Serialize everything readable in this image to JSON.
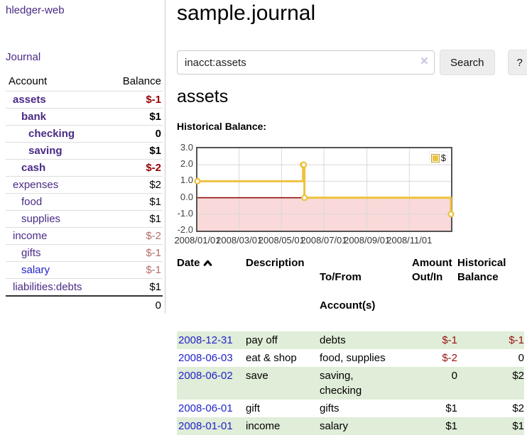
{
  "app": {
    "brand": "hledger-web"
  },
  "sidebar": {
    "nav_journal": "Journal",
    "headers": {
      "account": "Account",
      "balance": "Balance"
    },
    "accounts": [
      {
        "label": "assets",
        "level_class": "lv1",
        "row_class": "bold",
        "link_class": "",
        "balance": "$-1",
        "balance_class": "neg-strong"
      },
      {
        "label": "bank",
        "level_class": "lv2",
        "row_class": "bold",
        "link_class": "",
        "balance": "$1",
        "balance_class": ""
      },
      {
        "label": "checking",
        "level_class": "lv3",
        "row_class": "bold",
        "link_class": "",
        "balance": "0",
        "balance_class": ""
      },
      {
        "label": "saving",
        "level_class": "lv3",
        "row_class": "bold",
        "link_class": "",
        "balance": "$1",
        "balance_class": ""
      },
      {
        "label": "cash",
        "level_class": "lv2",
        "row_class": "bold",
        "link_class": "",
        "balance": "$-2",
        "balance_class": "neg-strong"
      },
      {
        "label": "expenses",
        "level_class": "lv1",
        "row_class": "",
        "link_class": "",
        "balance": "$2",
        "balance_class": ""
      },
      {
        "label": "food",
        "level_class": "lv2",
        "row_class": "",
        "link_class": "",
        "balance": "$1",
        "balance_class": ""
      },
      {
        "label": "supplies",
        "level_class": "lv2",
        "row_class": "",
        "link_class": "",
        "balance": "$1",
        "balance_class": ""
      },
      {
        "label": "income",
        "level_class": "lv1",
        "row_class": "",
        "link_class": "",
        "balance": "$-2",
        "balance_class": "neg-soft"
      },
      {
        "label": "gifts",
        "level_class": "lv2",
        "row_class": "",
        "link_class": "",
        "balance": "$-1",
        "balance_class": "neg-soft"
      },
      {
        "label": "salary",
        "level_class": "lv2",
        "row_class": "",
        "link_class": "unvisited",
        "balance": "$-1",
        "balance_class": "neg-soft"
      },
      {
        "label": "liabilities:debts",
        "level_class": "lv1",
        "row_class": "",
        "link_class": "",
        "balance": "$1",
        "balance_class": ""
      }
    ],
    "total": "0"
  },
  "header": {
    "title": "sample.journal"
  },
  "search": {
    "value": "inacct:assets",
    "clear_icon": "×",
    "button_label": "Search",
    "help_label": "?"
  },
  "account_page": {
    "heading": "assets",
    "chart_label": "Historical Balance:"
  },
  "chart_data": {
    "type": "line",
    "step": true,
    "title": "Historical Balance",
    "x_range": [
      "2008/01/01",
      "2008/12/31"
    ],
    "ylim": [
      -2,
      3
    ],
    "x_ticks": [
      "2008/01/01",
      "2008/03/01",
      "2008/05/01",
      "2008/07/01",
      "2008/09/01",
      "2008/11/01"
    ],
    "y_ticks": [
      "3.0",
      "2.0",
      "1.0",
      "0.0",
      "-1.0",
      "-2.0"
    ],
    "series": [
      {
        "name": "$",
        "color": "#edc240",
        "points": [
          [
            "2008/01/01",
            1
          ],
          [
            "2008/06/01",
            2
          ],
          [
            "2008/06/02",
            2
          ],
          [
            "2008/06/03",
            0
          ],
          [
            "2008/12/31",
            -1
          ]
        ]
      }
    ],
    "legend": {
      "position": "top-right",
      "label": "$"
    },
    "negative_fill": "#f9d9d9",
    "zero_line_color": "#8b0000",
    "grid_color": "#d9d9d9",
    "plot_border_color": "#545454"
  },
  "register": {
    "headers": {
      "date": "Date",
      "description": "Description",
      "accounts_line1": "To/From",
      "accounts_line2": "Account(s)",
      "amount_line1": "Amount",
      "amount_line2": "Out/In",
      "balance_line1": "Historical",
      "balance_line2": "Balance"
    },
    "transactions": [
      {
        "date": "2008-12-31",
        "description": "pay off",
        "accounts": "debts",
        "amount": "$-1",
        "amount_class": "neg",
        "balance": "$-1",
        "balance_class": "neg"
      },
      {
        "date": "2008-06-03",
        "description": "eat & shop",
        "accounts": "food, supplies",
        "amount": "$-2",
        "amount_class": "neg",
        "balance": "0",
        "balance_class": ""
      },
      {
        "date": "2008-06-02",
        "description": "save",
        "accounts": "saving,\nchecking",
        "amount": "0",
        "amount_class": "",
        "balance": "$2",
        "balance_class": ""
      },
      {
        "date": "2008-06-01",
        "description": "gift",
        "accounts": "gifts",
        "amount": "$1",
        "amount_class": "",
        "balance": "$2",
        "balance_class": ""
      },
      {
        "date": "2008-01-01",
        "description": "income",
        "accounts": "salary",
        "amount": "$1",
        "amount_class": "",
        "balance": "$1",
        "balance_class": ""
      }
    ]
  },
  "colors": {
    "link_purple": "#4a2a85",
    "link_blue": "#2222cc",
    "negative_strong": "#990000",
    "negative_soft": "#b56b6b",
    "row_stripe_green": "#e0edd8",
    "series_gold": "#edc240"
  }
}
